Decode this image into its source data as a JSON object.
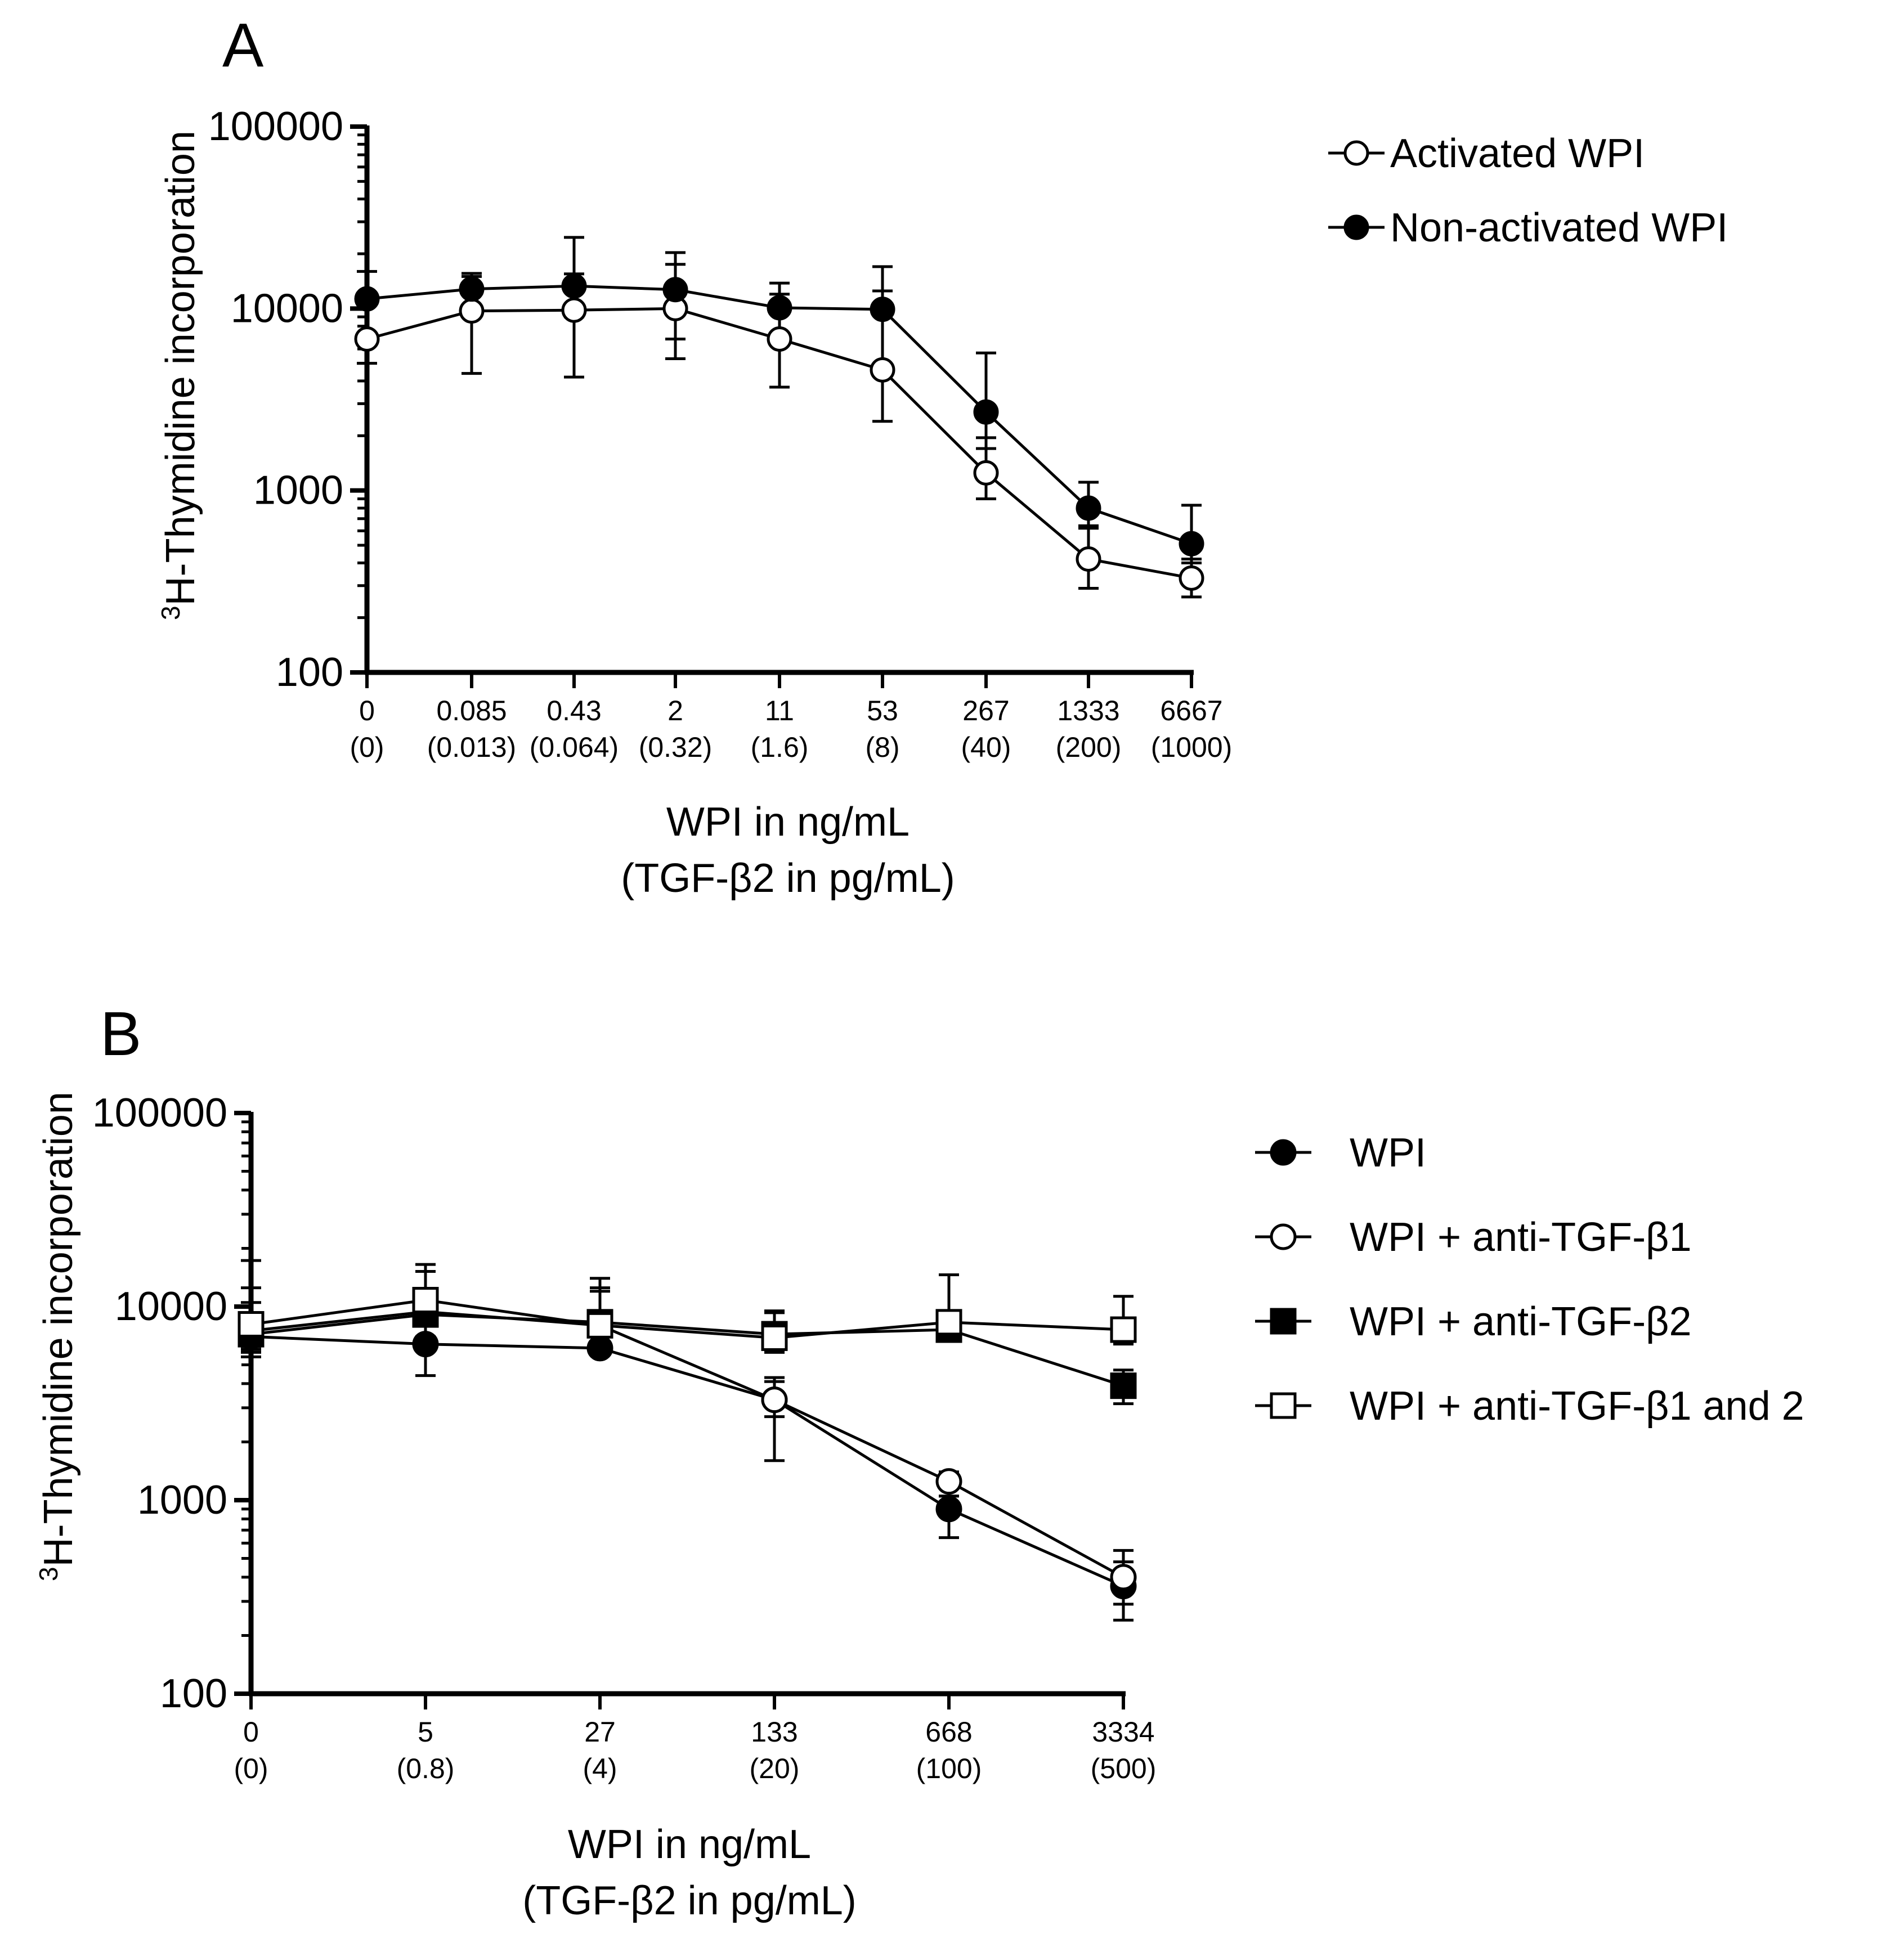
{
  "colors": {
    "ink": "#000000",
    "background": "#ffffff"
  },
  "chart_data": [
    {
      "panel_label": "A",
      "type": "line",
      "yscale": "log",
      "ylim": [
        100,
        100000
      ],
      "y_ticks": [
        "100",
        "1000",
        "10000",
        "100000"
      ],
      "ylabel": {
        "sup": "3",
        "text": "H-Thymidine incorporation"
      },
      "xlabel": [
        "WPI in ng/mL",
        "(TGF-β2 in pg/mL)"
      ],
      "categories": [
        "0",
        "0.085",
        "0.43",
        "2",
        "11",
        "53",
        "267",
        "1333",
        "6667"
      ],
      "categories_secondary": [
        "(0)",
        "(0.013)",
        "(0.064)",
        "(0.32)",
        "(1.6)",
        "(8)",
        "(40)",
        "(200)",
        "(1000)"
      ],
      "grid": false,
      "legend_position": "right",
      "series": [
        {
          "name": "Activated WPI",
          "marker": "circle-open",
          "values": [
            6800,
            9700,
            9800,
            10000,
            6800,
            4600,
            1250,
            420,
            330
          ],
          "err_low": [
            5000,
            4400,
            4200,
            5300,
            3700,
            2400,
            900,
            290,
            260
          ],
          "err_high": [
            11000,
            15000,
            15500,
            17500,
            12000,
            12500,
            1950,
            620,
            420
          ]
        },
        {
          "name": "Non-activated WPI",
          "marker": "circle-filled",
          "values": [
            11300,
            12800,
            13300,
            12700,
            10100,
            9900,
            2700,
            800,
            510
          ],
          "err_low": [
            6600,
            10000,
            9000,
            6800,
            7000,
            4800,
            1700,
            640,
            400
          ],
          "err_high": [
            16000,
            15600,
            24600,
            20300,
            13800,
            17000,
            5700,
            1110,
            830
          ]
        }
      ]
    },
    {
      "panel_label": "B",
      "type": "line",
      "yscale": "log",
      "ylim": [
        100,
        100000
      ],
      "y_ticks": [
        "100",
        "1000",
        "10000",
        "100000"
      ],
      "ylabel": {
        "sup": "3",
        "text": "H-Thymidine incorporation"
      },
      "xlabel": [
        "WPI in ng/mL",
        "(TGF-β2 in pg/mL)"
      ],
      "categories": [
        "0",
        "5",
        "27",
        "133",
        "668",
        "3334"
      ],
      "categories_secondary": [
        "(0)",
        "(0.8)",
        "(4)",
        "(20)",
        "(100)",
        "(500)"
      ],
      "grid": false,
      "legend_position": "right",
      "series": [
        {
          "name": "WPI",
          "marker": "circle-filled",
          "values": [
            7000,
            6400,
            6100,
            3300,
            900,
            360
          ],
          "err_low": [
            5500,
            4400,
            5800,
            1600,
            640,
            240
          ],
          "err_high": [
            9000,
            9000,
            6600,
            4300,
            1050,
            480
          ]
        },
        {
          "name": "WPI + anti-TGF-β1",
          "marker": "circle-open",
          "values": [
            7500,
            9400,
            8000,
            3300,
            1250,
            400
          ],
          "err_low": [
            5800,
            8000,
            6400,
            2700,
            1050,
            290
          ],
          "err_high": [
            12500,
            15200,
            12500,
            4100,
            1400,
            550
          ]
        },
        {
          "name": "WPI + anti-TGF-β2",
          "marker": "square-filled",
          "values": [
            7200,
            9100,
            8300,
            7200,
            7600,
            3900
          ],
          "err_low": [
            6000,
            7000,
            7000,
            5900,
            6800,
            3150
          ],
          "err_high": [
            10500,
            12000,
            12000,
            9500,
            8600,
            4700
          ]
        },
        {
          "name": "WPI + anti-TGF-β1 and 2",
          "marker": "square-open",
          "values": [
            8100,
            10800,
            8000,
            6900,
            8300,
            7600
          ],
          "err_low": [
            6200,
            8600,
            6300,
            5800,
            7000,
            6400
          ],
          "err_high": [
            17300,
            16500,
            14000,
            9300,
            14600,
            11300
          ]
        }
      ]
    }
  ]
}
